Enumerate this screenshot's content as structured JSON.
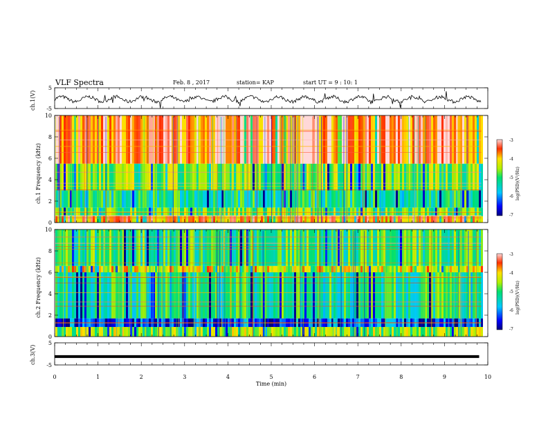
{
  "header": {
    "title": "VLF Spectra",
    "date": "Feb. 8 , 2017",
    "station": "station= KAP",
    "start_time": "start UT = 9 : 10: 1"
  },
  "chart_data": [
    {
      "type": "line",
      "panel": "ch1-waveform",
      "ylabel": "ch.1(V)",
      "ylim": [
        -5,
        5
      ],
      "yticks": [
        "5",
        "-5"
      ],
      "x": [
        0,
        0.25,
        0.5,
        0.75,
        1,
        1.25,
        1.5,
        1.75,
        2,
        2.25,
        2.5,
        2.75,
        3,
        3.25,
        3.5,
        3.75,
        4,
        4.25,
        4.5,
        4.75,
        5,
        5.25,
        5.5,
        5.75,
        6,
        6.25,
        6.5,
        6.75,
        7,
        7.25,
        7.5,
        7.75,
        8,
        8.25,
        8.5,
        8.75,
        9,
        9.25,
        9.5,
        9.75
      ],
      "y": [
        -1.5,
        -0.5,
        0.8,
        -0.2,
        -1.8,
        0.5,
        1.5,
        -0.5,
        -2,
        0.2,
        1.2,
        0,
        -1.6,
        0.6,
        1.4,
        -0.4,
        -1.9,
        0.4,
        1.6,
        -0.3,
        -1.7,
        0.3,
        1.3,
        -0.1,
        -1.5,
        0.7,
        1.5,
        -0.4,
        -1.8,
        0.5,
        1.4,
        -0.2,
        -1.6,
        0.4,
        1.2,
        -0.5,
        -1.9,
        0.6,
        1.1,
        -0.3
      ]
    },
    {
      "type": "heatmap",
      "panel": "ch1-spectrogram",
      "ylabel": "ch.1 Frequency (kHz)",
      "ylim": [
        0,
        10
      ],
      "yticks": [
        "0",
        "2",
        "4",
        "6",
        "8",
        "10"
      ],
      "colorbar": {
        "label": "log(PSD)(V²/Hz)",
        "range": [
          -7,
          -3
        ],
        "ticks": [
          "-3",
          "-4",
          "-5",
          "-6",
          "-7"
        ]
      },
      "bands": [
        {
          "from": 0,
          "to": 0.6,
          "level": -3.8
        },
        {
          "from": 0.6,
          "to": 1.4,
          "level": -4.8
        },
        {
          "from": 1.4,
          "to": 3.0,
          "level": -5.2
        },
        {
          "from": 3.0,
          "to": 5.5,
          "level": -4.7
        },
        {
          "from": 5.5,
          "to": 10,
          "level": -3.4
        }
      ]
    },
    {
      "type": "heatmap",
      "panel": "ch2-spectrogram",
      "ylabel": "ch.2 Frequency (kHz)",
      "ylim": [
        0,
        10
      ],
      "yticks": [
        "0",
        "2",
        "4",
        "6",
        "8",
        "10"
      ],
      "colorbar": {
        "label": "log(PSD)(V²/Hz)",
        "range": [
          -7,
          -3
        ],
        "ticks": [
          "-3",
          "-4",
          "-5",
          "-6",
          "-7"
        ]
      },
      "bands": [
        {
          "from": 0,
          "to": 0.9,
          "level": -4.6
        },
        {
          "from": 0.9,
          "to": 1.7,
          "level": -6.3
        },
        {
          "from": 1.7,
          "to": 6.0,
          "level": -5.2
        },
        {
          "from": 6.0,
          "to": 6.6,
          "level": -4.2
        },
        {
          "from": 6.6,
          "to": 10,
          "level": -5.0
        }
      ]
    },
    {
      "type": "line",
      "panel": "ch3-waveform",
      "ylabel": "ch.3(V)",
      "ylim": [
        -5,
        5
      ],
      "yticks": [
        "5",
        "-5"
      ],
      "x": [
        0,
        9.8
      ],
      "y": [
        -1.2,
        -1.2
      ]
    }
  ],
  "xaxis": {
    "label": "Time (min)",
    "range": [
      0,
      10
    ],
    "ticks": [
      "0",
      "1",
      "2",
      "3",
      "4",
      "5",
      "6",
      "7",
      "8",
      "9",
      "10"
    ]
  }
}
